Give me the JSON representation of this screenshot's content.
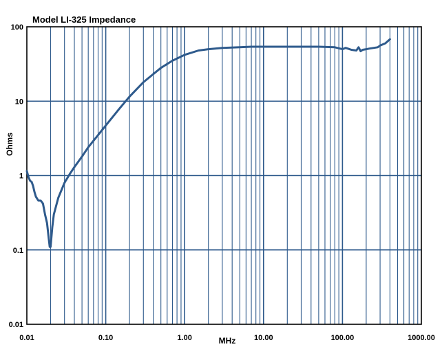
{
  "chart_data": {
    "type": "line",
    "title": "Model LI-325 Impedance",
    "xlabel": "MHz",
    "ylabel": "Ohms",
    "x_scale": "log",
    "y_scale": "log",
    "xlim": [
      0.01,
      1000
    ],
    "ylim": [
      0.01,
      100
    ],
    "x_tick_labels": [
      "0.01",
      "0.10",
      "1.00",
      "10.00",
      "100.00",
      "1000.00"
    ],
    "y_tick_labels": [
      "0.01",
      "0.1",
      "1",
      "10",
      "100"
    ],
    "grid": true,
    "colors": {
      "line": "#2e5a8c",
      "grid": "#2e5a8c",
      "frame": "#000000"
    },
    "series": [
      {
        "x": [
          0.01,
          0.0105,
          0.011,
          0.0115,
          0.012,
          0.0125,
          0.013,
          0.014,
          0.015,
          0.016,
          0.017,
          0.018,
          0.019,
          0.0195,
          0.02,
          0.021,
          0.022,
          0.025,
          0.03,
          0.035,
          0.04,
          0.05,
          0.06,
          0.08,
          0.1,
          0.15,
          0.2,
          0.3,
          0.5,
          0.7,
          1.0,
          1.5,
          2,
          3,
          5,
          7,
          10,
          20,
          50,
          80,
          100,
          110,
          130,
          150,
          160,
          170,
          180,
          200,
          220,
          250,
          280,
          300,
          350,
          400
        ],
        "y": [
          1.15,
          0.95,
          0.85,
          0.82,
          0.72,
          0.6,
          0.52,
          0.46,
          0.46,
          0.42,
          0.3,
          0.23,
          0.14,
          0.11,
          0.11,
          0.2,
          0.3,
          0.5,
          0.8,
          1.05,
          1.3,
          1.8,
          2.4,
          3.5,
          4.7,
          8,
          11.5,
          18,
          28,
          35,
          42,
          48,
          50,
          52,
          53,
          54,
          54,
          54,
          54,
          53,
          50,
          52,
          49,
          48,
          53,
          47,
          49,
          50,
          51,
          52,
          53,
          56,
          60,
          68
        ]
      }
    ]
  }
}
